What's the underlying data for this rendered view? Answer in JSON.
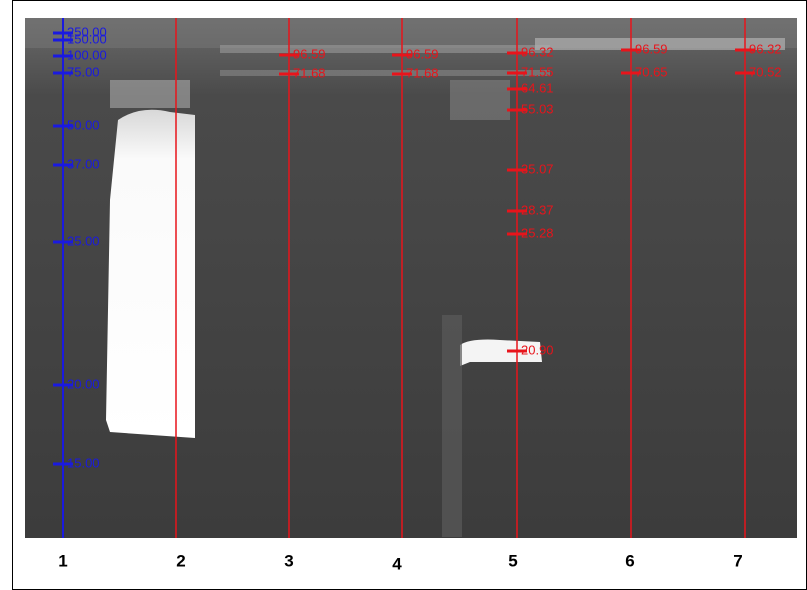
{
  "lanes": [
    {
      "label": "1",
      "bands": [
        "250.00",
        "150.00",
        "100.00",
        "75.00",
        "50.00",
        "37.00",
        "25.00",
        "20.00",
        "15.00"
      ]
    },
    {
      "label": "2"
    },
    {
      "label": "3",
      "bands": [
        "96.59",
        "71.68"
      ]
    },
    {
      "label": "4",
      "bands": [
        "96.59",
        "71.68"
      ]
    },
    {
      "label": "5",
      "bands": [
        "96.32",
        "71.55",
        "64.61",
        "55.03",
        "35.07",
        "28.37",
        "25.28",
        "20.90"
      ]
    },
    {
      "label": "6",
      "bands": [
        "96.59",
        "70.65"
      ]
    },
    {
      "label": "7",
      "bands": [
        "96.32",
        "70.52"
      ]
    }
  ]
}
